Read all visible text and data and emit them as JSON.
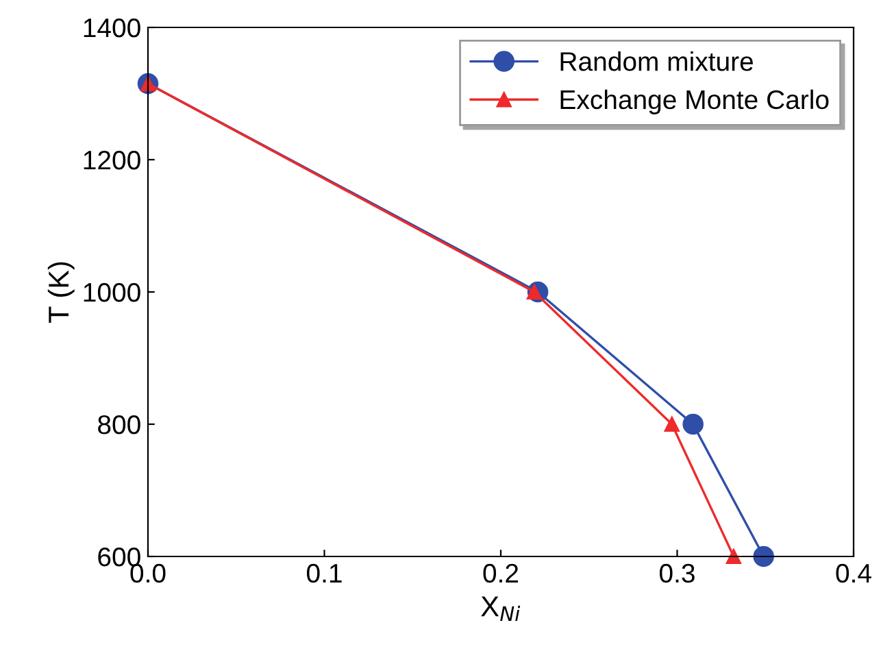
{
  "chart_data": {
    "type": "line",
    "xlabel": "X$_{Ni}$",
    "ylabel": "T (K)",
    "xlim": [
      0,
      0.4
    ],
    "ylim": [
      600,
      1400
    ],
    "xticks": [
      {
        "value": 0,
        "label": "0.0"
      },
      0.1,
      0.2,
      0.3,
      0.4
    ],
    "yticks": [
      600,
      800,
      1000,
      1200,
      1400
    ],
    "legend": "top right",
    "grid": false,
    "series": [
      {
        "name": "Random mixture",
        "color": "#2e4ea8",
        "marker": "circle",
        "x": [
          0.0,
          0.221,
          0.309,
          0.349
        ],
        "values": [
          1315,
          1000,
          800,
          600
        ]
      },
      {
        "name": "Exchange Monte Carlo",
        "color": "#ee2a2a",
        "marker": "triangle",
        "x": [
          0.0,
          0.219,
          0.297,
          0.332
        ],
        "values": [
          1315,
          1000,
          800,
          600
        ]
      }
    ]
  }
}
